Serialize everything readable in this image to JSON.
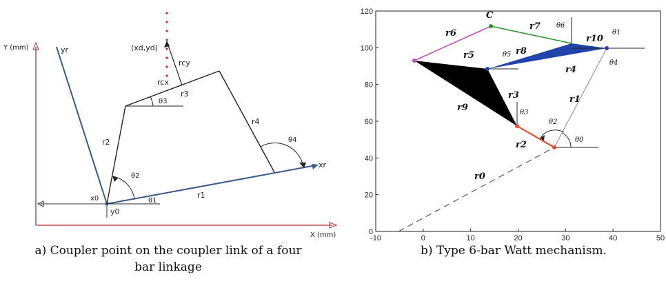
{
  "left_diagram": {
    "axis_y_label": "Y (mm)",
    "axis_x_label": "X (mm)",
    "yr_label": "yr",
    "xr_label": "xr",
    "x0_label": "x0",
    "y0_label": "y0",
    "xd_yd_label": "(xd,yd)",
    "r1": "r1",
    "r2": "r2",
    "r3": "r3",
    "r4": "r4",
    "rcx": "rcx",
    "rcy": "rcy",
    "theta1": "θ1",
    "theta2": "θ2",
    "theta3": "θ3",
    "theta4": "θ4",
    "caption_line1": "a) Coupler point on the coupler link of a four",
    "caption_line2": "bar linkage",
    "colors": {
      "axes": "#b03030",
      "frame": "#3a5a8a",
      "link": "#222222",
      "trace": "#e02020"
    }
  },
  "right_diagram": {
    "y_ticks": [
      "0",
      "20",
      "40",
      "60",
      "80",
      "100",
      "120"
    ],
    "x_ticks": [
      "-10",
      "0",
      "10",
      "20",
      "30",
      "40",
      "50"
    ],
    "point_C": "C",
    "r0": "r0",
    "r1": "r1",
    "r2": "r2",
    "r3": "r3",
    "r4": "r4",
    "r5": "r5",
    "r6": "r6",
    "r7": "r7",
    "r8": "r8",
    "r9": "r9",
    "r10": "r10",
    "theta0": "θ0",
    "theta1": "θ1",
    "theta2": "θ2",
    "theta3": "θ3",
    "theta4": "θ4",
    "theta5": "θ5",
    "theta6": "θ6",
    "caption": "b) Type 6-bar Watt mechanism.",
    "colors": {
      "ternary_black": "#000000",
      "ternary_blue": "#2244aa",
      "r2": "#e05030",
      "r6": "#c050c0",
      "r7": "#309030",
      "ground": "#888888"
    }
  }
}
